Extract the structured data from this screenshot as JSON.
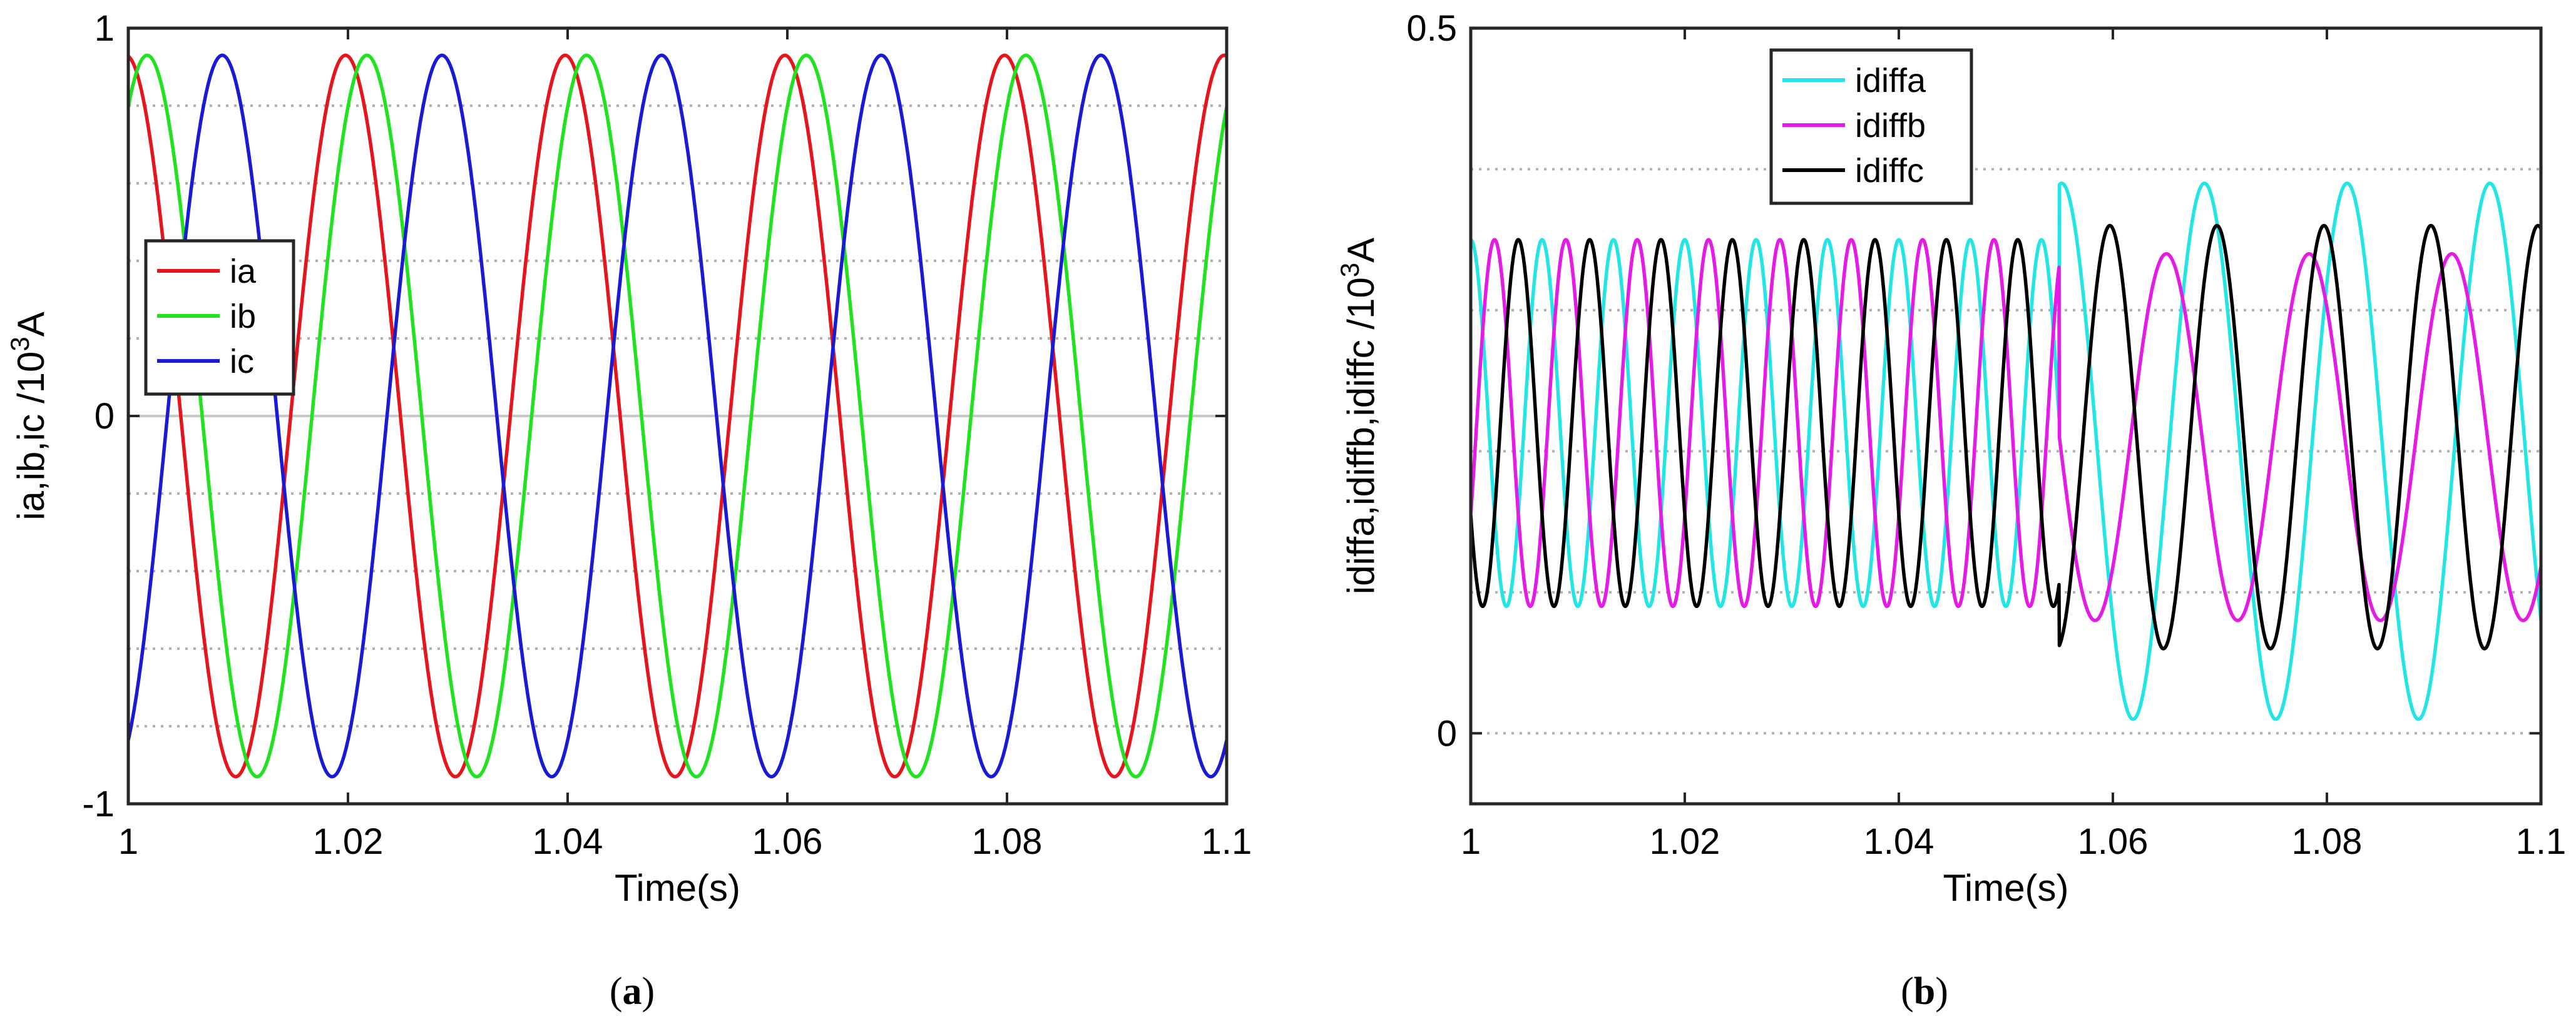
{
  "chart_data": [
    {
      "type": "line",
      "panel_label": "a",
      "xlabel": "Time(s)",
      "ylabel": "ia,ib,ic /10",
      "ylabel_sup": "3",
      "ylabel_unit": "A",
      "xlim": [
        1,
        1.1
      ],
      "ylim": [
        -1,
        1
      ],
      "xticks": [
        1,
        1.02,
        1.04,
        1.06,
        1.08,
        1.1
      ],
      "xtick_labels": [
        "1",
        "1.02",
        "1.04",
        "1.06",
        "1.08",
        "1.1"
      ],
      "yticks": [
        -1,
        0,
        1
      ],
      "ytick_labels": [
        "-1",
        "0",
        "1"
      ],
      "grid": "horizontal dotted",
      "legend_placement": "left",
      "series": [
        {
          "name": "ia",
          "color": "#e8141b",
          "amplitude": 0.93,
          "frequency_hz": 50,
          "phase_deg": 94,
          "offset": 0
        },
        {
          "name": "ib",
          "color": "#1fe31f",
          "amplitude": 0.93,
          "frequency_hz": 50,
          "phase_deg": 59,
          "offset": 0
        },
        {
          "name": "ic",
          "color": "#1a1ad6",
          "amplitude": 0.93,
          "frequency_hz": 50,
          "phase_deg": -64,
          "offset": 0
        }
      ]
    },
    {
      "type": "line",
      "panel_label": "b",
      "xlabel": "Time(s)",
      "ylabel": "idiffa,idiffb,idiffc /10",
      "ylabel_sup": "3",
      "ylabel_unit": "A",
      "xlim": [
        1,
        1.1
      ],
      "ylim": [
        -0.05,
        0.5
      ],
      "xticks": [
        1,
        1.02,
        1.04,
        1.06,
        1.08,
        1.1
      ],
      "xtick_labels": [
        "1",
        "1.02",
        "1.04",
        "1.06",
        "1.08",
        "1.1"
      ],
      "yticks": [
        0,
        0.5
      ],
      "ytick_labels": [
        "0",
        "0.5"
      ],
      "grid": "horizontal dotted",
      "legend_placement": "top-left",
      "series": [
        {
          "name": "idiffa",
          "color": "#22e6e6",
          "amplitude": 0.13,
          "frequency_hz": 150,
          "phase_deg": 90,
          "offset": 0.22,
          "fault_time": 1.055,
          "post_fault": {
            "amplitude": 0.19,
            "frequency_hz": 75,
            "phase_deg": 84,
            "offset": 0.2
          }
        },
        {
          "name": "idiffb",
          "color": "#e61ae6",
          "amplitude": 0.13,
          "frequency_hz": 150,
          "phase_deg": -30,
          "offset": 0.22,
          "fault_time": 1.055,
          "post_fault": {
            "amplitude": 0.13,
            "frequency_hz": 75,
            "phase_deg": 180,
            "offset": 0.21
          }
        },
        {
          "name": "idiffc",
          "color": "#000000",
          "amplitude": 0.13,
          "frequency_hz": 150,
          "phase_deg": 210,
          "offset": 0.22,
          "fault_time": 1.055,
          "post_fault": {
            "amplitude": 0.15,
            "frequency_hz": 100,
            "phase_deg": 280,
            "offset": 0.21
          }
        }
      ]
    }
  ]
}
